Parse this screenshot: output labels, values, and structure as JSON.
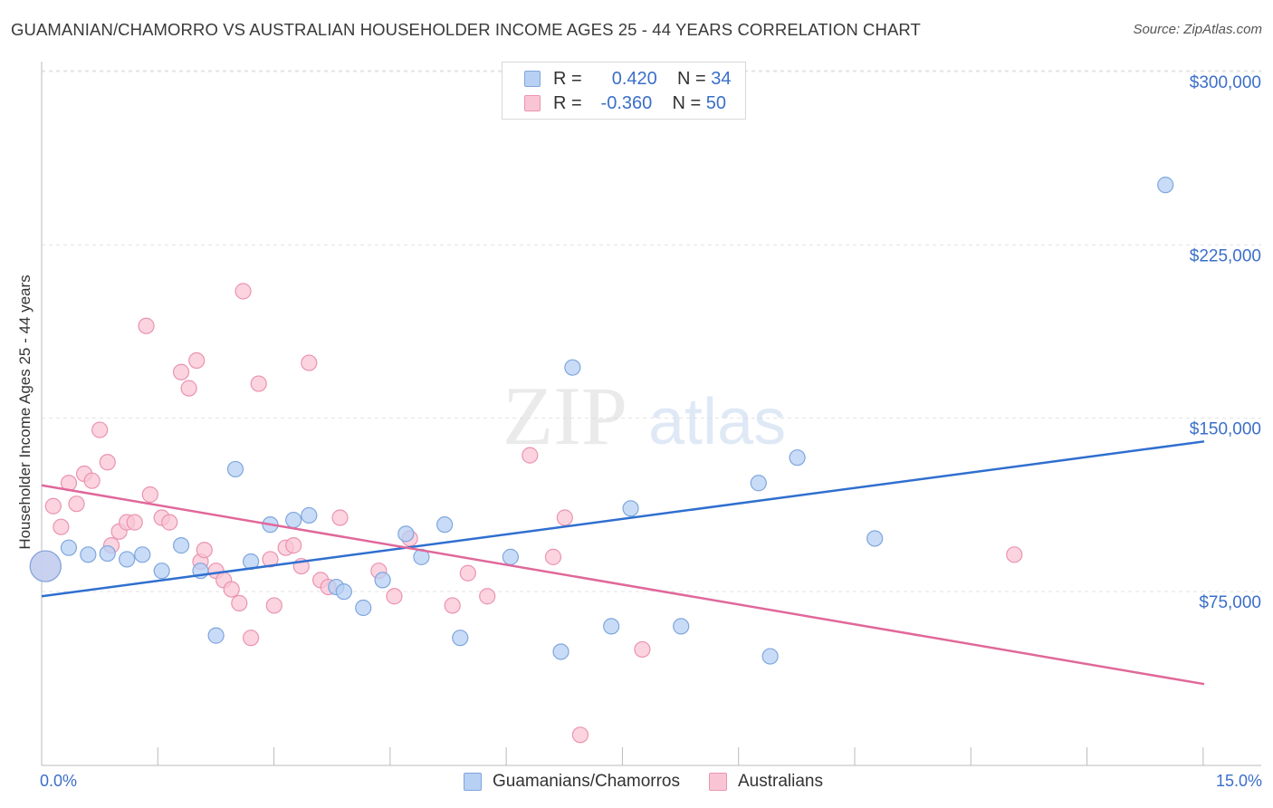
{
  "title": "GUAMANIAN/CHAMORRO VS AUSTRALIAN HOUSEHOLDER INCOME AGES 25 - 44 YEARS CORRELATION CHART",
  "source": "Source: ZipAtlas.com",
  "watermark": {
    "zip": "ZIP",
    "atlas": "atlas"
  },
  "legend": {
    "rows": [
      {
        "r_label": "R =",
        "r_value": "0.420",
        "n_label": "N =",
        "n_value": "34",
        "color": "#a9c8f2"
      },
      {
        "r_label": "R =",
        "r_value": "-0.360",
        "n_label": "N =",
        "n_value": "50",
        "color": "#f7b6cb"
      }
    ]
  },
  "bottom_legend": [
    "Guamanians/Chamorros",
    "Australians"
  ],
  "colors": {
    "blue_fill": "#b7d0f4",
    "blue_stroke": "#7fa6dd",
    "blue_line": "#2f6fcf",
    "pink_fill": "#f9c5d5",
    "pink_stroke": "#eb93b0",
    "pink_line": "#e0689a",
    "grid": "#e3e3e3",
    "tick_text": "#3b6fc9"
  },
  "chart_data": {
    "type": "scatter",
    "title": "GUAMANIAN/CHAMORRO VS AUSTRALIAN HOUSEHOLDER INCOME AGES 25 - 44 YEARS CORRELATION CHART",
    "xlabel": "",
    "ylabel": "Householder Income Ages 25 - 44 years",
    "xlim": [
      0,
      15
    ],
    "ylim": [
      0,
      310000
    ],
    "x_tick_labels": [
      "0.0%",
      "15.0%"
    ],
    "y_ticks": [
      75000,
      150000,
      225000,
      300000
    ],
    "y_tick_labels": [
      "$75,000",
      "$150,000",
      "$225,000",
      "$300,000"
    ],
    "grid": true,
    "legend_position": "top-center",
    "series": [
      {
        "name": "Guamanians/Chamorros",
        "trend": [
          [
            0,
            80000
          ],
          [
            15,
            147000
          ]
        ],
        "points": [
          [
            0.05,
            93000,
            "large"
          ],
          [
            0.35,
            101000
          ],
          [
            0.6,
            98000
          ],
          [
            0.85,
            98500
          ],
          [
            1.1,
            96000
          ],
          [
            1.3,
            98000
          ],
          [
            1.55,
            91000
          ],
          [
            1.8,
            102000
          ],
          [
            2.05,
            91000
          ],
          [
            2.25,
            63000
          ],
          [
            2.5,
            135000
          ],
          [
            2.7,
            95000
          ],
          [
            2.95,
            111000
          ],
          [
            3.25,
            113000
          ],
          [
            3.45,
            115000
          ],
          [
            3.8,
            84000
          ],
          [
            3.9,
            82000
          ],
          [
            4.15,
            75000
          ],
          [
            4.4,
            87000
          ],
          [
            4.7,
            107000
          ],
          [
            4.9,
            97000
          ],
          [
            5.2,
            111000
          ],
          [
            5.4,
            62000
          ],
          [
            6.05,
            97000
          ],
          [
            6.7,
            56000
          ],
          [
            6.85,
            179000
          ],
          [
            7.35,
            67000
          ],
          [
            7.6,
            118000
          ],
          [
            8.25,
            67000
          ],
          [
            9.25,
            129000
          ],
          [
            9.4,
            54000
          ],
          [
            9.75,
            140000
          ],
          [
            10.75,
            105000
          ],
          [
            14.5,
            258000
          ]
        ]
      },
      {
        "name": "Australians",
        "trend": [
          [
            0,
            128000
          ],
          [
            15,
            42000
          ]
        ],
        "points": [
          [
            0.05,
            93000,
            "large"
          ],
          [
            0.15,
            119000
          ],
          [
            0.25,
            110000
          ],
          [
            0.35,
            129000
          ],
          [
            0.45,
            120000
          ],
          [
            0.55,
            133000
          ],
          [
            0.65,
            130000
          ],
          [
            0.75,
            152000
          ],
          [
            0.85,
            138000
          ],
          [
            0.9,
            102000
          ],
          [
            1.0,
            108000
          ],
          [
            1.1,
            112000
          ],
          [
            1.2,
            112000
          ],
          [
            1.35,
            197000
          ],
          [
            1.4,
            124000
          ],
          [
            1.55,
            114000
          ],
          [
            1.65,
            112000
          ],
          [
            1.8,
            177000
          ],
          [
            1.9,
            170000
          ],
          [
            2.0,
            182000
          ],
          [
            2.05,
            95000
          ],
          [
            2.1,
            100000
          ],
          [
            2.25,
            91000
          ],
          [
            2.35,
            87000
          ],
          [
            2.45,
            83000
          ],
          [
            2.55,
            77000
          ],
          [
            2.6,
            212000
          ],
          [
            2.7,
            62000
          ],
          [
            2.8,
            172000
          ],
          [
            2.95,
            96000
          ],
          [
            3.0,
            76000
          ],
          [
            3.15,
            101000
          ],
          [
            3.25,
            102000
          ],
          [
            3.35,
            93000
          ],
          [
            3.45,
            181000
          ],
          [
            3.6,
            87000
          ],
          [
            3.7,
            84000
          ],
          [
            3.85,
            114000
          ],
          [
            4.35,
            91000
          ],
          [
            4.55,
            80000
          ],
          [
            4.75,
            105000
          ],
          [
            5.3,
            76000
          ],
          [
            5.5,
            90000
          ],
          [
            5.75,
            80000
          ],
          [
            6.3,
            141000
          ],
          [
            6.6,
            97000
          ],
          [
            6.75,
            114000
          ],
          [
            6.95,
            20000
          ],
          [
            7.75,
            57000
          ],
          [
            12.55,
            98000
          ]
        ]
      }
    ]
  }
}
